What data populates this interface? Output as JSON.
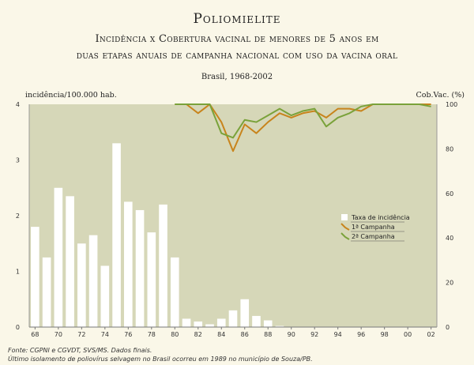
{
  "title": "Poliomielite",
  "subtitle_line1": "Incidência x Cobertura vacinal de menores de 5 anos em",
  "subtitle_line2": "duas etapas anuais de campanha nacional com uso da vacina oral",
  "place_period": "Brasil, 1968-2002",
  "source_line1": "Fonte: CGPNI e CGVDT, SVS/MS. Dados finais.",
  "source_line2": "Último isolamento de poliovírus selvagem no Brasil ocorreu em 1989 no município de Souza/PB.",
  "colors": {
    "plot_bg": "#d6d7b8",
    "bar": "#ffffff",
    "campanha1": "#c8841c",
    "campanha2": "#7aa23a"
  },
  "chart_data": {
    "type": "bar",
    "xlabel": "",
    "ylabel_left": "incidência/100.000 hab.",
    "ylabel_right": "Cob.Vac. (%)",
    "ylim_left": [
      0,
      4
    ],
    "ylim_right": [
      0,
      100
    ],
    "yticks_left": [
      "0",
      "1",
      "2",
      "3",
      "4"
    ],
    "yticks_right": [
      "0",
      "20",
      "40",
      "60",
      "80",
      "100"
    ],
    "xtick_labels": [
      "68",
      "70",
      "72",
      "74",
      "76",
      "78",
      "80",
      "82",
      "84",
      "86",
      "88",
      "90",
      "92",
      "94",
      "96",
      "98",
      "00",
      "02"
    ],
    "years": [
      1968,
      1969,
      1970,
      1971,
      1972,
      1973,
      1974,
      1975,
      1976,
      1977,
      1978,
      1979,
      1980,
      1981,
      1982,
      1983,
      1984,
      1985,
      1986,
      1987,
      1988,
      1989,
      1990,
      1991,
      1992,
      1993,
      1994,
      1995,
      1996,
      1997,
      1998,
      1999,
      2000,
      2001,
      2002
    ],
    "legend_placement": "right",
    "series": [
      {
        "name": "Taxa de incidência",
        "kind": "bar",
        "axis": "left",
        "values": [
          1.8,
          1.25,
          2.5,
          2.35,
          1.5,
          1.65,
          1.1,
          3.3,
          2.25,
          2.1,
          1.7,
          2.2,
          1.25,
          0.15,
          0.1,
          0.05,
          0.15,
          0.3,
          0.5,
          0.2,
          0.12,
          0.02,
          0,
          0,
          0,
          0,
          0,
          0,
          0,
          0,
          0,
          0,
          0,
          0,
          0
        ]
      },
      {
        "name": "1ª Campanha",
        "kind": "line",
        "axis": "right",
        "x": [
          1980,
          1981,
          1982,
          1983,
          1984,
          1985,
          1986,
          1987,
          1988,
          1989,
          1990,
          1991,
          1992,
          1993,
          1994,
          1995,
          1996,
          1997,
          1998,
          1999,
          2000,
          2001,
          2002
        ],
        "values": [
          100,
          100,
          96,
          100,
          92,
          79,
          91,
          87,
          92,
          96,
          94,
          96,
          97,
          94,
          98,
          98,
          97,
          100,
          100,
          100,
          100,
          100,
          100
        ]
      },
      {
        "name": "2ª Campanha",
        "kind": "line",
        "axis": "right",
        "x": [
          1980,
          1981,
          1982,
          1983,
          1984,
          1985,
          1986,
          1987,
          1988,
          1989,
          1990,
          1991,
          1992,
          1993,
          1994,
          1995,
          1996,
          1997,
          1998,
          1999,
          2000,
          2001,
          2002
        ],
        "values": [
          100,
          100,
          100,
          100,
          87,
          85,
          93,
          92,
          95,
          98,
          95,
          97,
          98,
          90,
          94,
          96,
          99,
          100,
          100,
          100,
          100,
          100,
          99
        ]
      }
    ]
  }
}
